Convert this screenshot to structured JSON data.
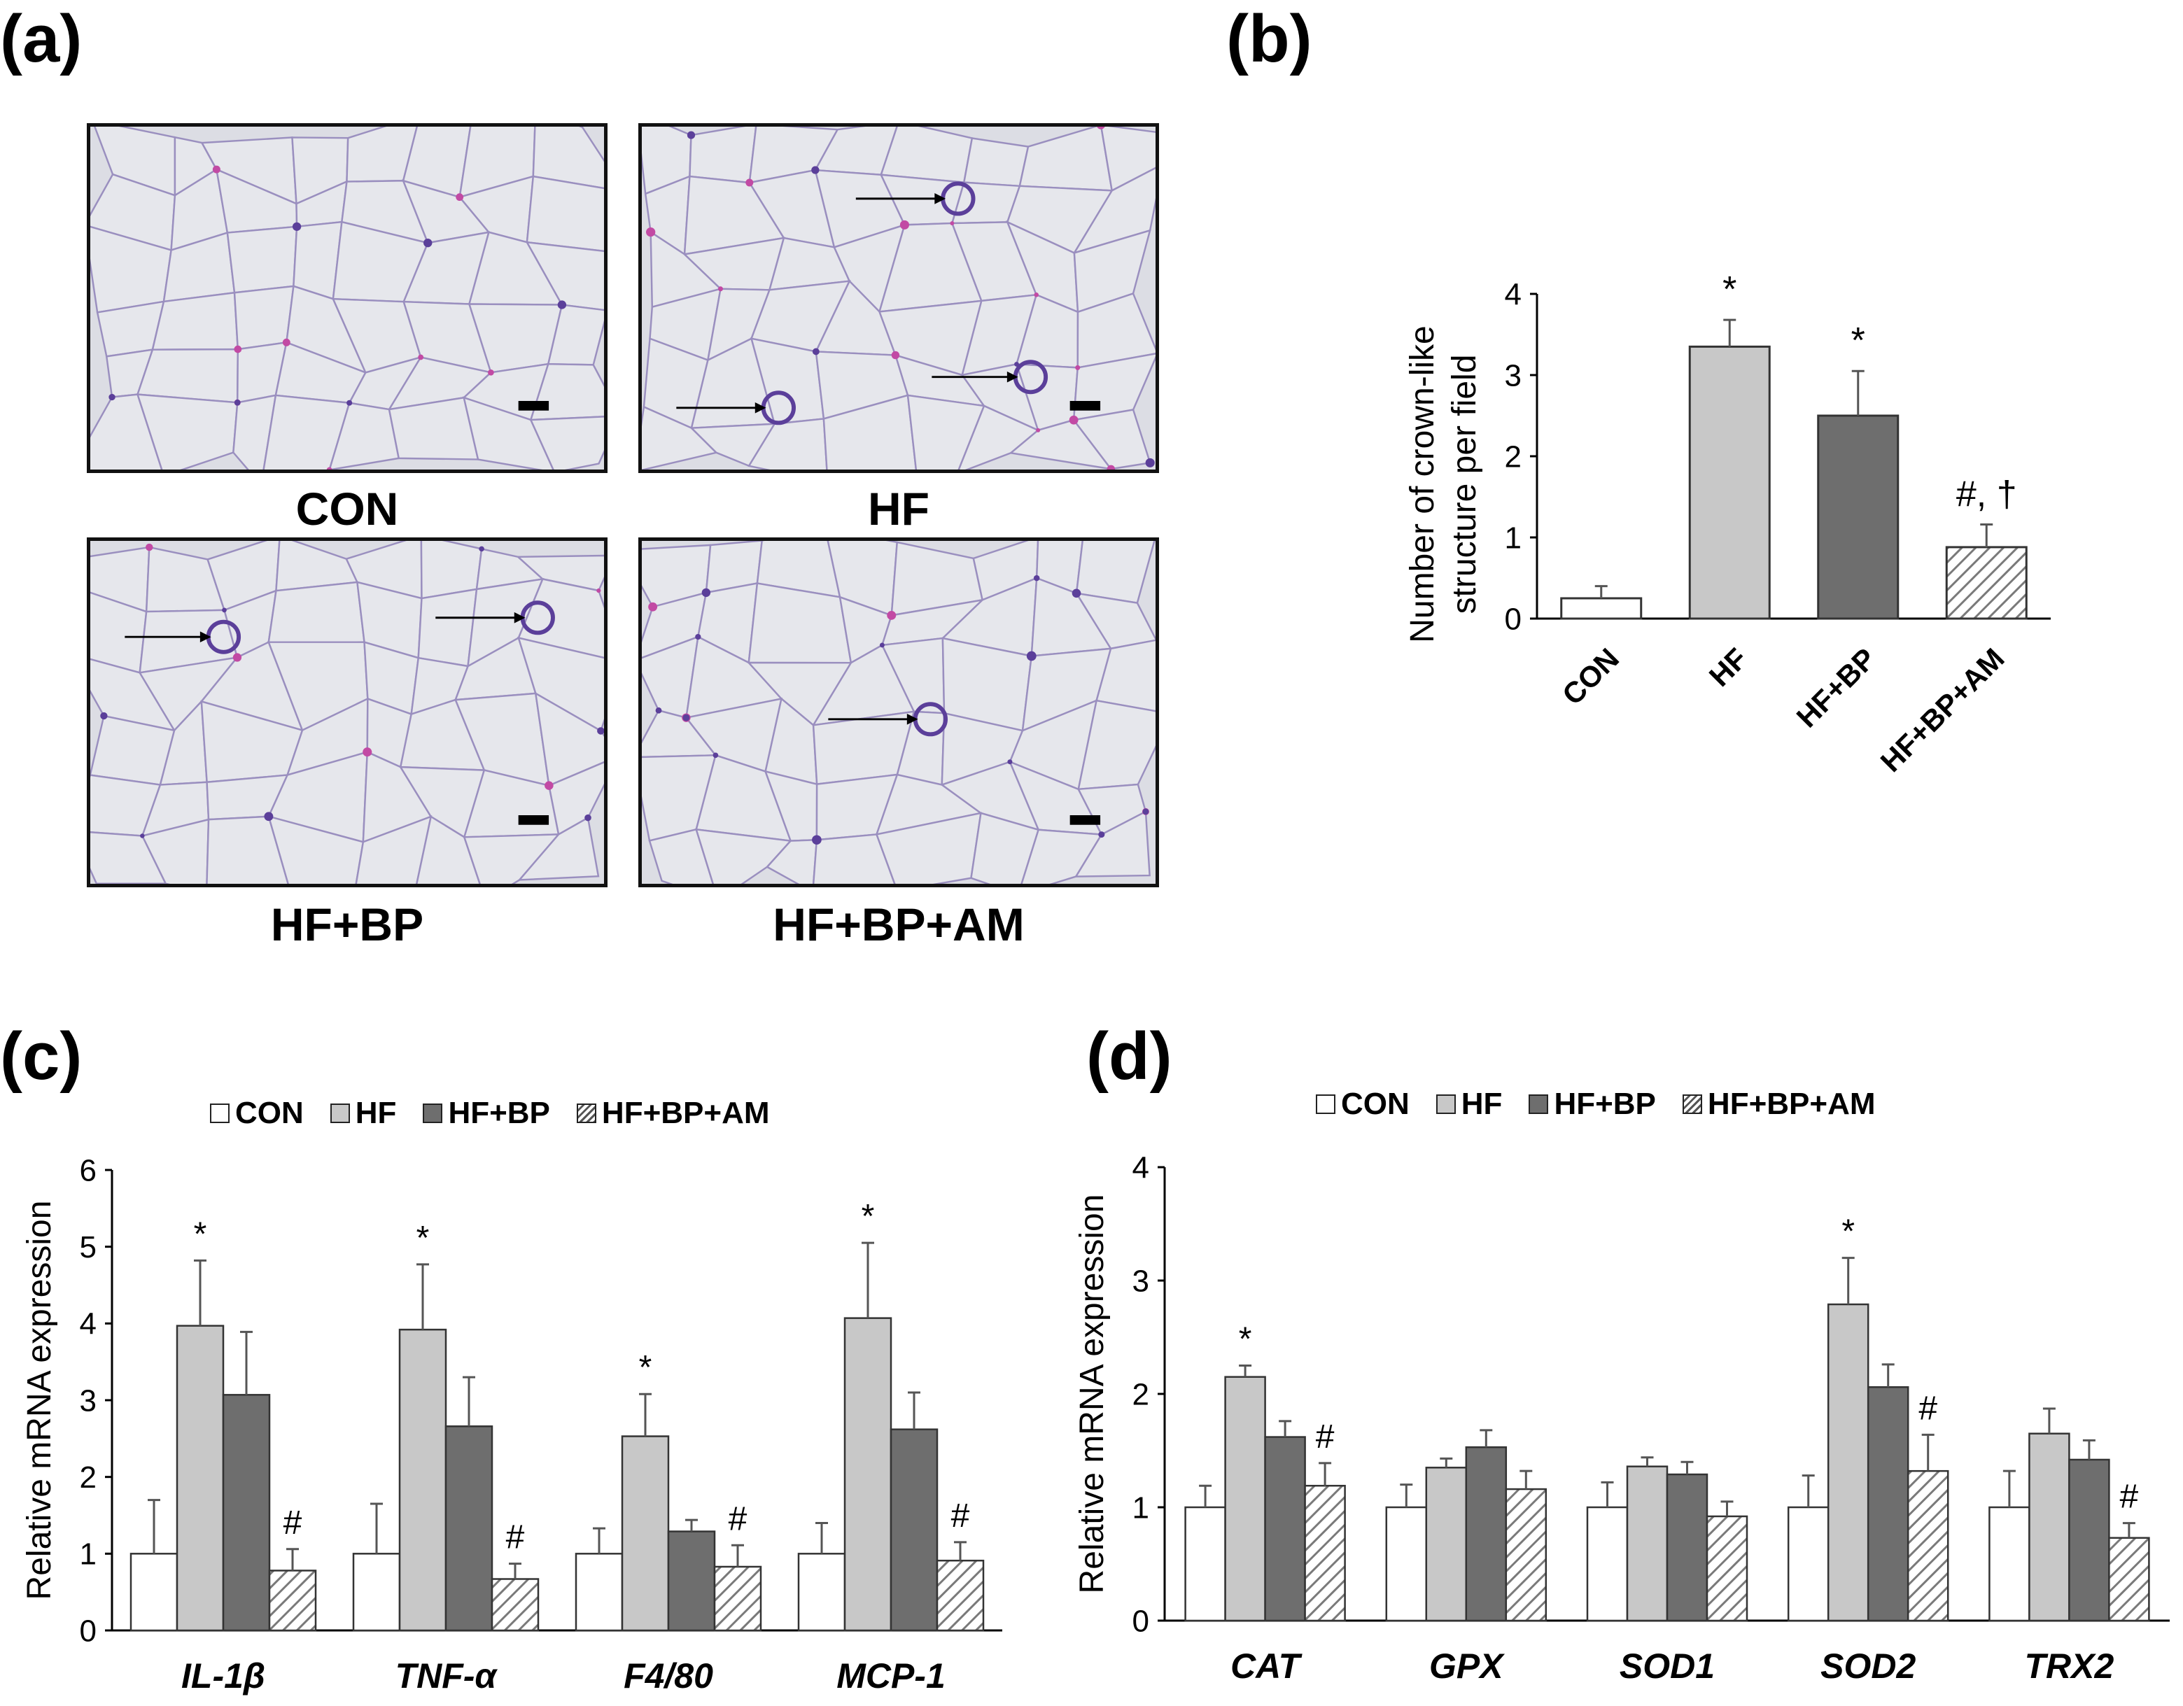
{
  "panels": {
    "a": {
      "label": "(a)",
      "images": [
        {
          "caption": "CON"
        },
        {
          "caption": "HF"
        },
        {
          "caption": "HF+BP"
        },
        {
          "caption": "HF+BP+AM"
        }
      ]
    },
    "b": {
      "label": "(b)"
    },
    "c": {
      "label": "(c)"
    },
    "d": {
      "label": "(d)"
    }
  },
  "colors": {
    "CON": "#ffffff",
    "HF": "#c8c8c8",
    "HF+BP": "#6e6e6e",
    "HF+BP+AM": "hatched",
    "stain_pink": "#c24aa4",
    "stain_purple": "#5b3f9a",
    "stain_bg": "#dcdde4"
  },
  "legend": [
    "CON",
    "HF",
    "HF+BP",
    "HF+BP+AM"
  ],
  "chart_data": [
    {
      "id": "b",
      "type": "bar",
      "title": "",
      "ylabel": "Number of crown-like structure per field",
      "ylabel_lines": [
        "Number of crown-like",
        "structure per field"
      ],
      "xlabel": "",
      "categories": [
        "CON",
        "HF",
        "HF+BP",
        "HF+BP+AM"
      ],
      "values": [
        0.25,
        3.35,
        2.5,
        0.88
      ],
      "errors": [
        0.15,
        0.33,
        0.55,
        0.28
      ],
      "annotations": [
        "",
        "*",
        "*",
        "#, †"
      ],
      "ylim": [
        0,
        4
      ],
      "yticks": [
        "0",
        "1",
        "2",
        "3",
        "4"
      ]
    },
    {
      "id": "c",
      "type": "bar",
      "title": "",
      "ylabel": "Relative mRNA expression",
      "xlabel": "",
      "categories": [
        "IL-1β",
        "TNF-α",
        "F4/80",
        "MCP-1"
      ],
      "series": [
        {
          "name": "CON",
          "values": [
            1.0,
            1.0,
            1.0,
            1.0
          ],
          "errors": [
            0.7,
            0.65,
            0.33,
            0.4
          ],
          "annotations": [
            "",
            "",
            "",
            ""
          ]
        },
        {
          "name": "HF",
          "values": [
            3.97,
            3.92,
            2.53,
            4.07
          ],
          "errors": [
            0.85,
            0.85,
            0.55,
            0.98
          ],
          "annotations": [
            "*",
            "*",
            "*",
            "*"
          ]
        },
        {
          "name": "HF+BP",
          "values": [
            3.07,
            2.66,
            1.29,
            2.62
          ],
          "errors": [
            0.82,
            0.64,
            0.15,
            0.48
          ],
          "annotations": [
            "",
            "",
            "",
            ""
          ]
        },
        {
          "name": "HF+BP+AM",
          "values": [
            0.78,
            0.67,
            0.83,
            0.91
          ],
          "errors": [
            0.28,
            0.2,
            0.28,
            0.24
          ],
          "annotations": [
            "#",
            "#",
            "#",
            "#"
          ]
        }
      ],
      "ylim": [
        0,
        6
      ],
      "yticks": [
        "0",
        "1",
        "2",
        "3",
        "4",
        "5",
        "6"
      ]
    },
    {
      "id": "d",
      "type": "bar",
      "title": "",
      "ylabel": "Relative mRNA expression",
      "xlabel": "",
      "categories": [
        "CAT",
        "GPX",
        "SOD1",
        "SOD2",
        "TRX2"
      ],
      "series": [
        {
          "name": "CON",
          "values": [
            1.0,
            1.0,
            1.0,
            1.0,
            1.0
          ],
          "errors": [
            0.19,
            0.2,
            0.22,
            0.28,
            0.32
          ],
          "annotations": [
            "",
            "",
            "",
            "",
            ""
          ]
        },
        {
          "name": "HF",
          "values": [
            2.15,
            1.35,
            1.36,
            2.79,
            1.65
          ],
          "errors": [
            0.1,
            0.08,
            0.08,
            0.41,
            0.22
          ],
          "annotations": [
            "*",
            "",
            "",
            "*",
            ""
          ]
        },
        {
          "name": "HF+BP",
          "values": [
            1.62,
            1.53,
            1.29,
            2.06,
            1.42
          ],
          "errors": [
            0.14,
            0.15,
            0.11,
            0.2,
            0.17
          ],
          "annotations": [
            "",
            "",
            "",
            "",
            ""
          ]
        },
        {
          "name": "HF+BP+AM",
          "values": [
            1.19,
            1.16,
            0.92,
            1.32,
            0.73
          ],
          "errors": [
            0.2,
            0.16,
            0.13,
            0.32,
            0.13
          ],
          "annotations": [
            "#",
            "",
            "",
            "#",
            "#"
          ]
        }
      ],
      "ylim": [
        0,
        4
      ],
      "yticks": [
        "0",
        "1",
        "2",
        "3",
        "4"
      ]
    }
  ]
}
